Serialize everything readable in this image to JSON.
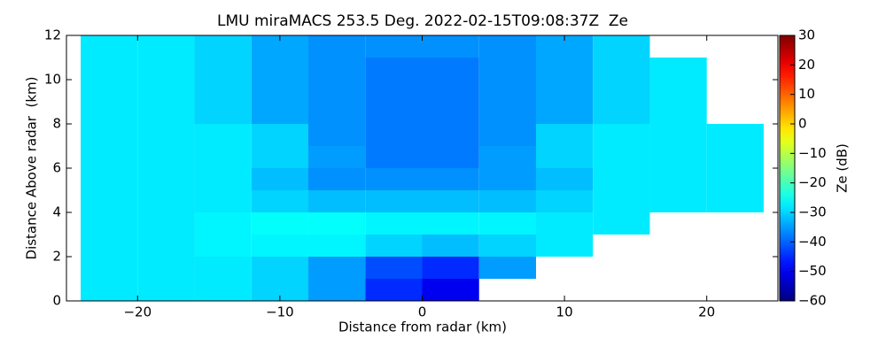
{
  "chart_data": {
    "type": "heatmap",
    "title": "LMU miraMACS 253.5 Deg. 2022-02-15T09:08:37Z  Ze",
    "x_label": "Distance from radar (km)",
    "y_label": "Distance Above radar  (km)",
    "colorbar_label": "Ze (dB)",
    "colormap": "jet",
    "xlim": [
      -25,
      25
    ],
    "ylim": [
      0,
      12
    ],
    "clim": [
      -60,
      30
    ],
    "xticks": [
      {
        "value": -20,
        "label": "−20"
      },
      {
        "value": -10,
        "label": "−10"
      },
      0,
      10,
      20
    ],
    "yticks": [
      0,
      2,
      4,
      6,
      8,
      10,
      12
    ],
    "cticks": [
      {
        "value": -60,
        "label": "−60"
      },
      {
        "value": -50,
        "label": "−50"
      },
      {
        "value": -40,
        "label": "−40"
      },
      {
        "value": -30,
        "label": "−30"
      },
      {
        "value": -20,
        "label": "−20"
      },
      {
        "value": -10,
        "label": "−10"
      },
      0,
      10,
      20,
      30
    ],
    "xbins": [
      -24,
      -20,
      -16,
      -12,
      -8,
      -4,
      0,
      4,
      8,
      12,
      16,
      20,
      24
    ],
    "ybins": [
      0,
      1,
      2,
      3,
      4,
      5,
      6,
      7,
      8,
      9,
      10,
      11,
      12
    ],
    "values": [
      [
        -28,
        -28,
        -28,
        -30,
        -35,
        -45,
        -50,
        null,
        null,
        null,
        null,
        null
      ],
      [
        -28,
        -28,
        -28,
        -30,
        -35,
        -42,
        -45,
        -35,
        null,
        null,
        null,
        null
      ],
      [
        -28,
        -28,
        -27,
        -27,
        -27,
        -30,
        -32,
        -30,
        -28,
        null,
        null,
        null
      ],
      [
        -28,
        -28,
        -27,
        -26,
        -26,
        -27,
        -27,
        -27,
        -28,
        -28,
        null,
        null
      ],
      [
        -28,
        -28,
        -28,
        -30,
        -32,
        -32,
        -32,
        -32,
        -30,
        -28,
        -28,
        -28
      ],
      [
        -28,
        -28,
        -28,
        -32,
        -36,
        -36,
        -36,
        -35,
        -32,
        -28,
        -28,
        -28
      ],
      [
        -28,
        -28,
        -28,
        -30,
        -35,
        -38,
        -38,
        -35,
        -30,
        -28,
        -28,
        -28
      ],
      [
        -28,
        -28,
        -28,
        -30,
        -36,
        -38,
        -38,
        -36,
        -30,
        -28,
        -28,
        -28
      ],
      [
        -28,
        -28,
        -30,
        -34,
        -36,
        -38,
        -38,
        -36,
        -34,
        -30,
        -28,
        null
      ],
      [
        -28,
        -28,
        -30,
        -34,
        -36,
        -38,
        -38,
        -36,
        -34,
        -30,
        -28,
        null
      ],
      [
        -28,
        -28,
        -30,
        -34,
        -36,
        -38,
        -38,
        -36,
        -34,
        -30,
        -28,
        null
      ],
      [
        -28,
        -28,
        -30,
        -34,
        -36,
        -36,
        -36,
        -36,
        -34,
        -30,
        null,
        null
      ]
    ]
  }
}
